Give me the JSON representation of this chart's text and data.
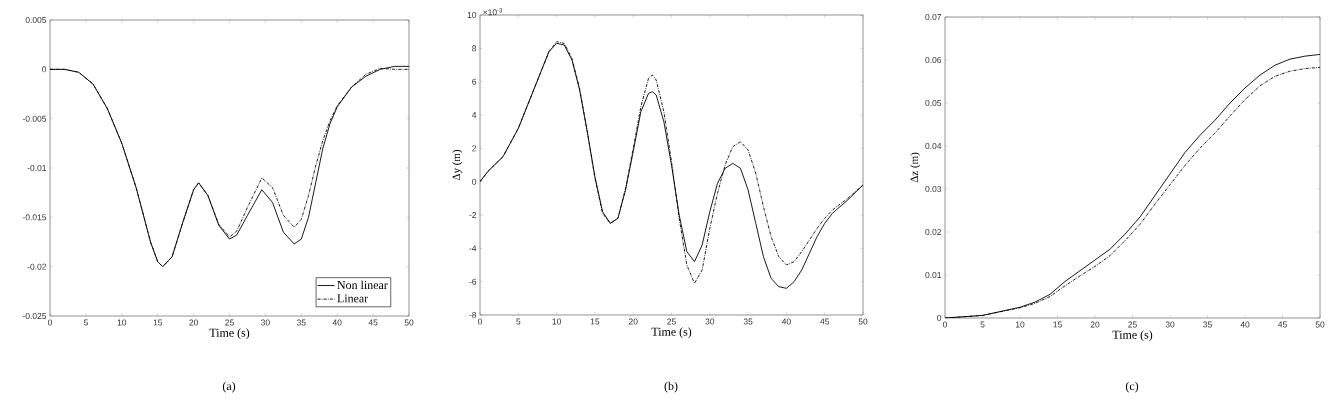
{
  "chart_data": [
    {
      "type": "line",
      "xlabel": "Time (s)",
      "xlim": [
        0,
        50
      ],
      "ylim": [
        -0.025,
        0.005
      ],
      "xticks": [
        0,
        5,
        10,
        15,
        20,
        25,
        30,
        35,
        40,
        45,
        50
      ],
      "yticks": [
        0.005,
        0,
        -0.005,
        -0.01,
        -0.015,
        -0.02,
        -0.025
      ],
      "legend": "bottom right",
      "grid": false,
      "annotations": [
        "(a)"
      ],
      "series": [
        {
          "name": "Non linear",
          "color": "#000000",
          "line_style": "solid",
          "x": [
            0,
            2,
            4,
            6,
            8,
            10,
            12,
            14,
            15,
            15.7,
            17,
            18.5,
            20,
            20.7,
            22,
            23.5,
            25,
            26,
            27.5,
            29.5,
            31,
            32.5,
            34,
            35,
            36,
            37,
            38,
            39,
            40,
            42,
            44,
            46,
            48,
            50
          ],
          "values": [
            0,
            0,
            -0.0003,
            -0.0015,
            -0.004,
            -0.0075,
            -0.012,
            -0.0175,
            -0.0195,
            -0.02,
            -0.019,
            -0.0155,
            -0.0122,
            -0.0115,
            -0.0128,
            -0.0158,
            -0.0172,
            -0.0168,
            -0.0148,
            -0.0122,
            -0.0135,
            -0.0165,
            -0.0177,
            -0.0172,
            -0.015,
            -0.0115,
            -0.008,
            -0.0055,
            -0.0038,
            -0.0018,
            -0.0007,
            0,
            0.0003,
            0.0003
          ]
        },
        {
          "name": "Linear",
          "color": "#000000",
          "line_style": "dashed",
          "x": [
            0,
            2,
            4,
            6,
            8,
            10,
            12,
            14,
            15,
            15.7,
            17,
            18.5,
            20,
            20.7,
            22,
            23.5,
            25,
            26,
            27.5,
            29.5,
            31,
            32.5,
            34,
            35,
            36,
            37,
            38,
            39,
            40,
            42,
            44,
            46,
            48,
            50
          ],
          "values": [
            0,
            0,
            -0.0003,
            -0.0015,
            -0.004,
            -0.0075,
            -0.012,
            -0.0175,
            -0.0195,
            -0.02,
            -0.019,
            -0.0155,
            -0.0122,
            -0.0115,
            -0.0128,
            -0.0157,
            -0.017,
            -0.0164,
            -0.014,
            -0.011,
            -0.012,
            -0.0148,
            -0.016,
            -0.0152,
            -0.0128,
            -0.0098,
            -0.0072,
            -0.0052,
            -0.0037,
            -0.0018,
            -0.0005,
            0.0001,
            0,
            0
          ]
        }
      ]
    },
    {
      "type": "line",
      "xlabel": "Time (s)",
      "ylabel": "Δy (m)",
      "xlim": [
        0,
        50
      ],
      "ylim": [
        -8,
        10
      ],
      "xticks": [
        0,
        5,
        10,
        15,
        20,
        25,
        30,
        35,
        40,
        45,
        50
      ],
      "yticks": [
        -8,
        -6,
        -4,
        -2,
        0,
        2,
        4,
        6,
        8,
        10
      ],
      "grid": false,
      "annotations": [
        "×10$^{-3}$",
        "(b)"
      ],
      "series": [
        {
          "color": "#000000",
          "line_style": "solid",
          "x": [
            0,
            1,
            3,
            5,
            7,
            9,
            10,
            11,
            12,
            13,
            14,
            15,
            16,
            17,
            18,
            19,
            20,
            21,
            22,
            22.5,
            23,
            24,
            25,
            26,
            27,
            28,
            29,
            30,
            31,
            32,
            33,
            34,
            35,
            36,
            37,
            38,
            39,
            40,
            41,
            42,
            43,
            44,
            45,
            46,
            48,
            50
          ],
          "values": [
            0,
            0.6,
            1.5,
            3.2,
            5.5,
            7.8,
            8.3,
            8.2,
            7.3,
            5.5,
            3,
            0.3,
            -1.8,
            -2.5,
            -2.2,
            -0.5,
            1.8,
            4.2,
            5.3,
            5.4,
            5.2,
            3.6,
            1,
            -2,
            -4.2,
            -4.8,
            -3.8,
            -1.8,
            -0.1,
            0.8,
            1.1,
            0.8,
            -0.5,
            -2.5,
            -4.5,
            -5.8,
            -6.3,
            -6.4,
            -6,
            -5.3,
            -4.3,
            -3.3,
            -2.5,
            -1.9,
            -1.1,
            -0.2
          ]
        },
        {
          "color": "#000000",
          "line_style": "dashed",
          "x": [
            0,
            1,
            3,
            5,
            7,
            9,
            10,
            11,
            12,
            13,
            14,
            15,
            16,
            17,
            18,
            19,
            20,
            21,
            22,
            22.5,
            23,
            24,
            25,
            26,
            27,
            28,
            29,
            30,
            31,
            32,
            33,
            34,
            35,
            36,
            37,
            38,
            39,
            40,
            41,
            42,
            43,
            44,
            45,
            46,
            48,
            50
          ],
          "values": [
            0,
            0.6,
            1.5,
            3.2,
            5.5,
            7.8,
            8.4,
            8.3,
            7.4,
            5.6,
            3,
            0.2,
            -1.9,
            -2.5,
            -2.2,
            -0.4,
            2,
            4.5,
            6.2,
            6.4,
            6.1,
            4.2,
            1.2,
            -2.2,
            -5,
            -6.1,
            -5.3,
            -2.8,
            -0.7,
            1,
            2.1,
            2.4,
            1.9,
            0.5,
            -1.5,
            -3.3,
            -4.5,
            -5,
            -4.8,
            -4.2,
            -3.5,
            -2.8,
            -2.2,
            -1.7,
            -1,
            -0.2
          ]
        }
      ]
    },
    {
      "type": "line",
      "xlabel": "Time (s)",
      "ylabel": "Δz (m)",
      "xlim": [
        0,
        50
      ],
      "ylim": [
        0,
        0.07
      ],
      "xticks": [
        0,
        5,
        10,
        15,
        20,
        25,
        30,
        35,
        40,
        45,
        50
      ],
      "yticks": [
        0,
        0.01,
        0.02,
        0.03,
        0.04,
        0.05,
        0.06,
        0.07
      ],
      "grid": false,
      "annotations": [
        "(c)"
      ],
      "series": [
        {
          "color": "#000000",
          "line_style": "solid",
          "x": [
            0,
            5,
            10,
            12,
            14,
            16,
            18,
            20,
            22,
            24,
            26,
            28,
            30,
            32,
            34,
            36,
            38,
            40,
            42,
            44,
            46,
            48,
            50
          ],
          "values": [
            0,
            0.0006,
            0.0025,
            0.0037,
            0.0055,
            0.0085,
            0.011,
            0.0135,
            0.016,
            0.0195,
            0.0235,
            0.0285,
            0.0335,
            0.0385,
            0.0425,
            0.046,
            0.05,
            0.0535,
            0.0565,
            0.0588,
            0.0602,
            0.0609,
            0.0613
          ]
        },
        {
          "color": "#000000",
          "line_style": "dashed",
          "x": [
            0,
            5,
            10,
            12,
            14,
            16,
            18,
            20,
            22,
            24,
            26,
            28,
            30,
            32,
            34,
            36,
            38,
            40,
            42,
            44,
            46,
            48,
            50
          ],
          "values": [
            0,
            0.0006,
            0.0024,
            0.0034,
            0.005,
            0.0075,
            0.0098,
            0.012,
            0.0145,
            0.018,
            0.0218,
            0.0265,
            0.031,
            0.0355,
            0.0395,
            0.043,
            0.047,
            0.0508,
            0.054,
            0.0562,
            0.0574,
            0.058,
            0.0583
          ]
        }
      ]
    }
  ]
}
